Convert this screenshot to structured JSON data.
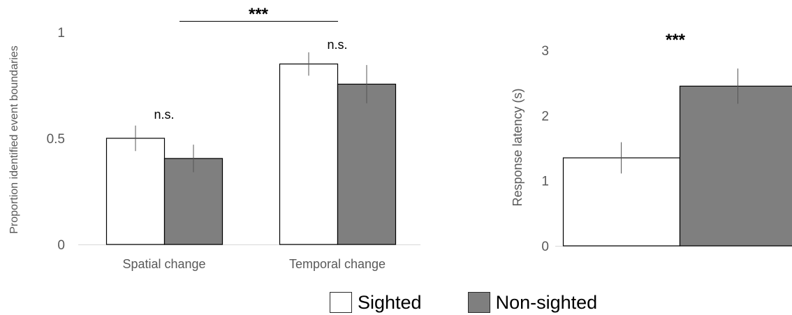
{
  "chart_data": [
    {
      "type": "bar",
      "ylabel": "Proportion identified event boundaries",
      "xlabel": "",
      "ylim": [
        0,
        1
      ],
      "yticks": [
        0,
        0.5,
        1
      ],
      "ytick_labels": [
        "0",
        "0.5",
        "1"
      ],
      "categories": [
        "Spatial change",
        "Temporal change"
      ],
      "series": [
        {
          "name": "Sighted",
          "values": [
            0.5,
            0.85
          ],
          "errors": [
            0.06,
            0.055
          ],
          "color": "#ffffff"
        },
        {
          "name": "Non-sighted",
          "values": [
            0.405,
            0.755
          ],
          "errors": [
            0.065,
            0.09
          ],
          "color": "#7f7f7f"
        }
      ],
      "annotations": [
        {
          "text": "n.s.",
          "category": "Spatial change"
        },
        {
          "text": "n.s.",
          "category": "Temporal change"
        },
        {
          "text": "***",
          "between": [
            "Spatial change",
            "Temporal change"
          ]
        }
      ]
    },
    {
      "type": "bar",
      "ylabel": "Response latency (s)",
      "xlabel": "",
      "ylim": [
        0,
        3
      ],
      "yticks": [
        0,
        1,
        2,
        3
      ],
      "ytick_labels": [
        "0",
        "1",
        "2",
        "3"
      ],
      "categories": [
        ""
      ],
      "series": [
        {
          "name": "Sighted",
          "values": [
            1.35
          ],
          "errors": [
            0.24
          ],
          "color": "#ffffff"
        },
        {
          "name": "Non-sighted",
          "values": [
            2.45
          ],
          "errors": [
            0.27
          ],
          "color": "#7f7f7f"
        }
      ],
      "annotations": [
        {
          "text": "***",
          "between": [
            "Sighted",
            "Non-sighted"
          ]
        }
      ]
    }
  ],
  "legend": {
    "items": [
      {
        "label": "Sighted",
        "color": "#ffffff"
      },
      {
        "label": "Non-sighted",
        "color": "#7f7f7f"
      }
    ]
  }
}
